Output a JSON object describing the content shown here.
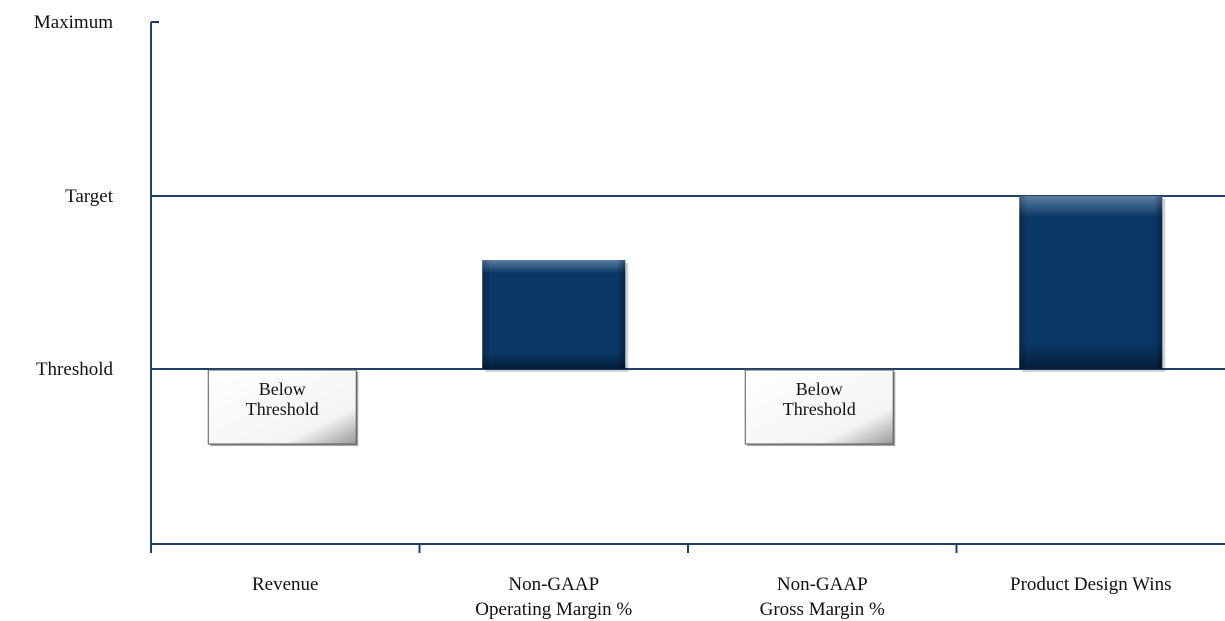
{
  "colors": {
    "axis": "#1f4068",
    "bar_top": "#5b7fa5",
    "bar_main": "#0b3866",
    "bar_bottom": "#041e3a",
    "box_fill": "#f7f7f7",
    "box_border": "#555555",
    "text": "#111111"
  },
  "chart_data": {
    "type": "bar",
    "title": "",
    "xlabel": "",
    "ylabel": "",
    "y_levels": [
      "Maximum",
      "Target",
      "Threshold"
    ],
    "ylim": [
      -1,
      2
    ],
    "grid": true,
    "categories": [
      {
        "lines": [
          "Revenue"
        ]
      },
      {
        "lines": [
          "Non-GAAP",
          "Operating Margin %"
        ]
      },
      {
        "lines": [
          "Non-GAAP",
          "Gross Margin %"
        ]
      },
      {
        "lines": [
          "Product Design Wins"
        ]
      }
    ],
    "values": [
      null,
      0.63,
      null,
      1.0
    ],
    "value_scale": {
      "0": "Threshold",
      "1": "Target",
      "2": "Maximum"
    },
    "annotations": [
      {
        "category_index": 0,
        "lines": [
          "Below",
          "Threshold"
        ]
      },
      {
        "category_index": 2,
        "lines": [
          "Below",
          "Threshold"
        ]
      }
    ]
  }
}
